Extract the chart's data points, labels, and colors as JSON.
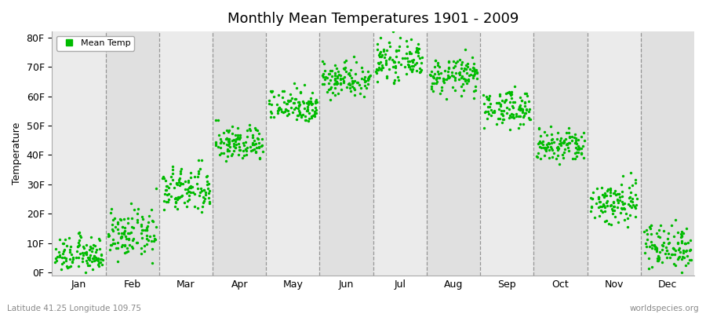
{
  "title": "Monthly Mean Temperatures 1901 - 2009",
  "ylabel": "Temperature",
  "month_labels": [
    "Jan",
    "Feb",
    "Mar",
    "Apr",
    "May",
    "Jun",
    "Jul",
    "Aug",
    "Sep",
    "Oct",
    "Nov",
    "Dec"
  ],
  "ytick_labels": [
    "0F",
    "10F",
    "20F",
    "30F",
    "40F",
    "50F",
    "60F",
    "70F",
    "80F"
  ],
  "ytick_values": [
    0,
    10,
    20,
    30,
    40,
    50,
    60,
    70,
    80
  ],
  "ylim": [
    -1,
    82
  ],
  "xlim": [
    0,
    12
  ],
  "legend_label": "Mean Temp",
  "dot_color": "#00bb00",
  "bg_color_light": "#ebebeb",
  "bg_color_dark": "#e0e0e0",
  "footer_left": "Latitude 41.25 Longitude 109.75",
  "footer_right": "worldspecies.org",
  "monthly_means": [
    6,
    13,
    28,
    44,
    57,
    66,
    72,
    67,
    56,
    43,
    24,
    9
  ],
  "monthly_stds": [
    3,
    4,
    4,
    3,
    3,
    3,
    3,
    3,
    3,
    3,
    4,
    4
  ],
  "n_years": 109,
  "dot_size": 6
}
